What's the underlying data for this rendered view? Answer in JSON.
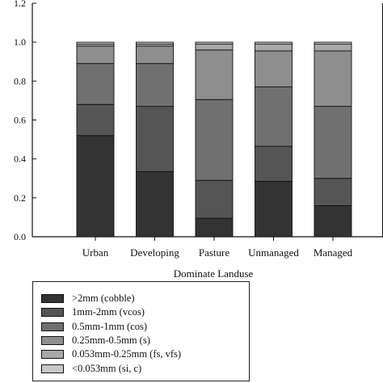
{
  "chart_data": {
    "type": "bar",
    "stacked": true,
    "categories": [
      "Urban",
      "Developing",
      "Pasture",
      "Unmanaged",
      "Managed"
    ],
    "xlabel": "Dominate Landuse",
    "ylabel": "",
    "ylim": [
      0,
      1.2
    ],
    "yticks": [
      "0.0",
      "0.2",
      "0.4",
      "0.6",
      "0.8",
      "1.0",
      "1.2"
    ],
    "grid": false,
    "legend_position": "bottom-left",
    "series": [
      {
        "name": ">2mm (cobble)",
        "color": "#333333",
        "values": [
          0.52,
          0.335,
          0.095,
          0.285,
          0.16
        ]
      },
      {
        "name": "1mm-2mm (vcos)",
        "color": "#555555",
        "values": [
          0.16,
          0.335,
          0.195,
          0.18,
          0.14
        ]
      },
      {
        "name": "0.5mm-1mm (cos)",
        "color": "#707070",
        "values": [
          0.21,
          0.22,
          0.415,
          0.305,
          0.37
        ]
      },
      {
        "name": "0.25mm-0.5mm (s)",
        "color": "#8e8e8e",
        "values": [
          0.09,
          0.09,
          0.255,
          0.185,
          0.285
        ]
      },
      {
        "name": "0.053mm-0.25mm (fs, vfs)",
        "color": "#a8a8a8",
        "values": [
          0.01,
          0.01,
          0.03,
          0.035,
          0.035
        ]
      },
      {
        "name": "<0.053mm (si, c)",
        "color": "#c8c8c8",
        "values": [
          0.01,
          0.01,
          0.01,
          0.01,
          0.01
        ]
      }
    ]
  }
}
